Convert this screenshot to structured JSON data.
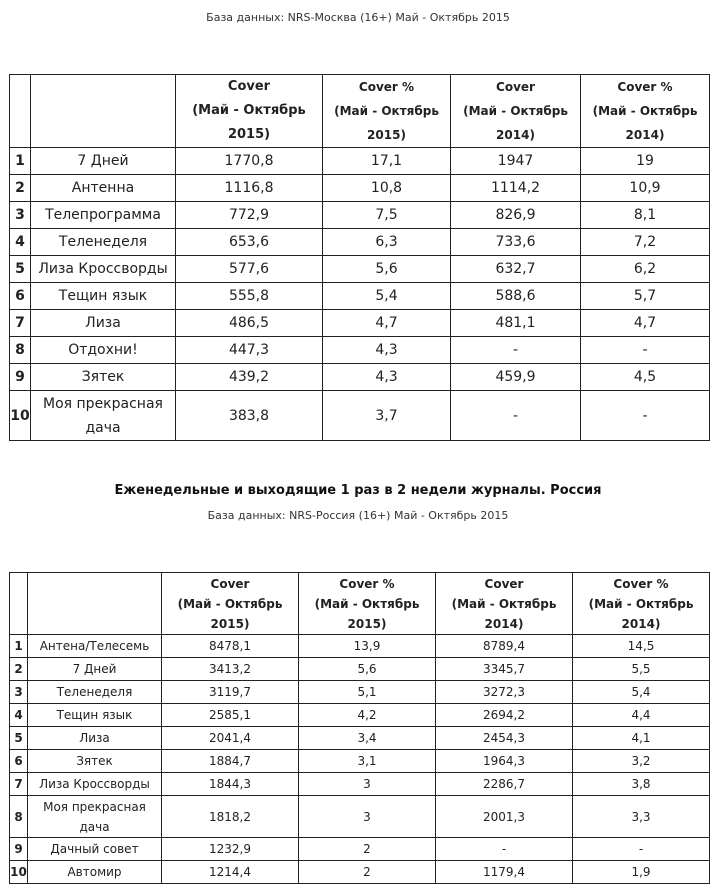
{
  "section1": {
    "db_line": "База данных: NRS-Москва (16+) Май - Октябрь 2015",
    "headers": [
      "",
      "",
      "Cover\n(Май - Октябрь\n2015)",
      "Cover %\n(Май - Октябрь\n2015)",
      "Cover\n(Май - Октябрь\n2014)",
      "Cover %\n(Май - Октябрь\n2014)"
    ],
    "rows": [
      [
        "1",
        "7 Дней",
        "1770,8",
        "17,1",
        "1947",
        "19"
      ],
      [
        "2",
        "Антенна",
        "1116,8",
        "10,8",
        "1114,2",
        "10,9"
      ],
      [
        "3",
        "Телепрограмма",
        "772,9",
        "7,5",
        "826,9",
        "8,1"
      ],
      [
        "4",
        "Теленеделя",
        "653,6",
        "6,3",
        "733,6",
        "7,2"
      ],
      [
        "5",
        "Лиза Кроссворды",
        "577,6",
        "5,6",
        "632,7",
        "6,2"
      ],
      [
        "6",
        "Тещин язык",
        "555,8",
        "5,4",
        "588,6",
        "5,7"
      ],
      [
        "7",
        "Лиза",
        "486,5",
        "4,7",
        "481,1",
        "4,7"
      ],
      [
        "8",
        "Отдохни!",
        "447,3",
        "4,3",
        "-",
        "-"
      ],
      [
        "9",
        "Зятек",
        "439,2",
        "4,3",
        "459,9",
        "4,5"
      ],
      [
        "10",
        "Моя прекрасная дача",
        "383,8",
        "3,7",
        "-",
        "-"
      ]
    ]
  },
  "section2": {
    "title": "Еженедельные и выходящие 1 раз в 2 недели журналы. Россия",
    "db_line": "База данных: NRS-Россия (16+) Май - Октябрь 2015",
    "headers": [
      "",
      "",
      "Cover\n(Май - Октябрь\n2015)",
      "Cover %\n(Май - Октябрь\n2015)",
      "Cover\n(Май - Октябрь\n2014)",
      "Cover %\n(Май - Октябрь\n2014)"
    ],
    "rows": [
      [
        "1",
        "Антена/Телесемь",
        "8478,1",
        "13,9",
        "8789,4",
        "14,5"
      ],
      [
        "2",
        "7 Дней",
        "3413,2",
        "5,6",
        "3345,7",
        "5,5"
      ],
      [
        "3",
        "Теленеделя",
        "3119,7",
        "5,1",
        "3272,3",
        "5,4"
      ],
      [
        "4",
        "Тещин язык",
        "2585,1",
        "4,2",
        "2694,2",
        "4,4"
      ],
      [
        "5",
        "Лиза",
        "2041,4",
        "3,4",
        "2454,3",
        "4,1"
      ],
      [
        "6",
        "Зятек",
        "1884,7",
        "3,1",
        "1964,3",
        "3,2"
      ],
      [
        "7",
        "Лиза Кроссворды",
        "1844,3",
        "3",
        "2286,7",
        "3,8"
      ],
      [
        "8",
        "Моя прекрасная дача",
        "1818,2",
        "3",
        "2001,3",
        "3,3"
      ],
      [
        "9",
        "Дачный совет",
        "1232,9",
        "2",
        "-",
        "-"
      ],
      [
        "10",
        "Автомир",
        "1214,4",
        "2",
        "1179,4",
        "1,9"
      ]
    ]
  }
}
